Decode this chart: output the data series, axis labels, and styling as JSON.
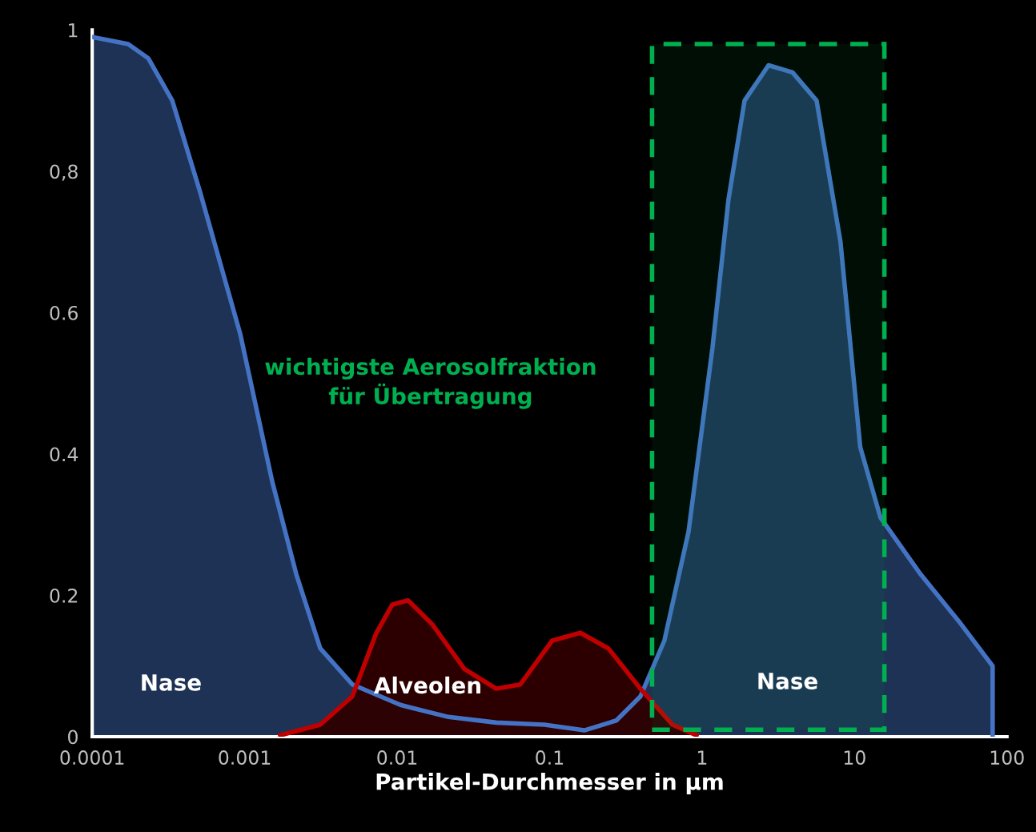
{
  "chart_data": {
    "type": "area",
    "xlabel": "Partikel-Durchmesser in µm",
    "log": "x",
    "grid": false,
    "xlim": [
      0.0001,
      100
    ],
    "xticks": [
      {
        "value": 0.0001,
        "label": "0.0001"
      },
      {
        "value": 0.001,
        "label": "0.001"
      },
      {
        "value": 0.01,
        "label": "0.01"
      },
      {
        "value": 0.1,
        "label": "0.1"
      },
      1,
      10,
      100
    ],
    "ylim": [
      0,
      1
    ],
    "yticks": [
      0,
      0.2,
      0.4,
      {
        "value": 0.6,
        "label": "0.6"
      },
      {
        "value": 0.8,
        "label": "0,8"
      },
      1
    ],
    "series": [
      {
        "color": "#4472c4",
        "x": [
          0.0001,
          0.000172,
          0.000233,
          0.000335,
          0.000511,
          0.000935,
          0.00152,
          0.00218,
          0.00313,
          0.00508,
          0.0105,
          0.0217,
          0.0448,
          0.0925,
          0.169,
          0.274,
          0.394,
          0.566,
          0.815,
          1.17,
          1.49,
          1.9,
          2.73,
          3.92,
          5.64,
          8.09,
          10.9,
          14.8,
          27.1,
          49.7,
          80.5,
          80.5
        ],
        "values": [
          0.99,
          0.98,
          0.96,
          0.9,
          0.77,
          0.57,
          0.36,
          0.23,
          0.125,
          0.074,
          0.045,
          0.028,
          0.02,
          0.017,
          0.009,
          0.023,
          0.057,
          0.136,
          0.29,
          0.55,
          0.76,
          0.9,
          0.95,
          0.94,
          0.9,
          0.7,
          0.41,
          0.31,
          0.23,
          0.16,
          0.1,
          0
        ]
      },
      {
        "color": "#c00000",
        "x": [
          0.00171,
          0.00313,
          0.00508,
          0.00731,
          0.0093,
          0.0118,
          0.017,
          0.0276,
          0.0448,
          0.0643,
          0.104,
          0.159,
          0.243,
          0.394,
          0.64,
          0.92
        ],
        "values": [
          0.002,
          0.017,
          0.057,
          0.147,
          0.187,
          0.193,
          0.159,
          0.096,
          0.068,
          0.074,
          0.136,
          0.147,
          0.125,
          0.068,
          0.017,
          0.002
        ]
      }
    ],
    "bands": [
      {
        "axis": "x",
        "from": 0.47,
        "to": 15.7,
        "color": "#00b050"
      }
    ],
    "annotations": [
      "Nase",
      "Alveolen",
      "Nase",
      "wichtigste Aerosolfraktion\nfür Übertragung"
    ]
  }
}
